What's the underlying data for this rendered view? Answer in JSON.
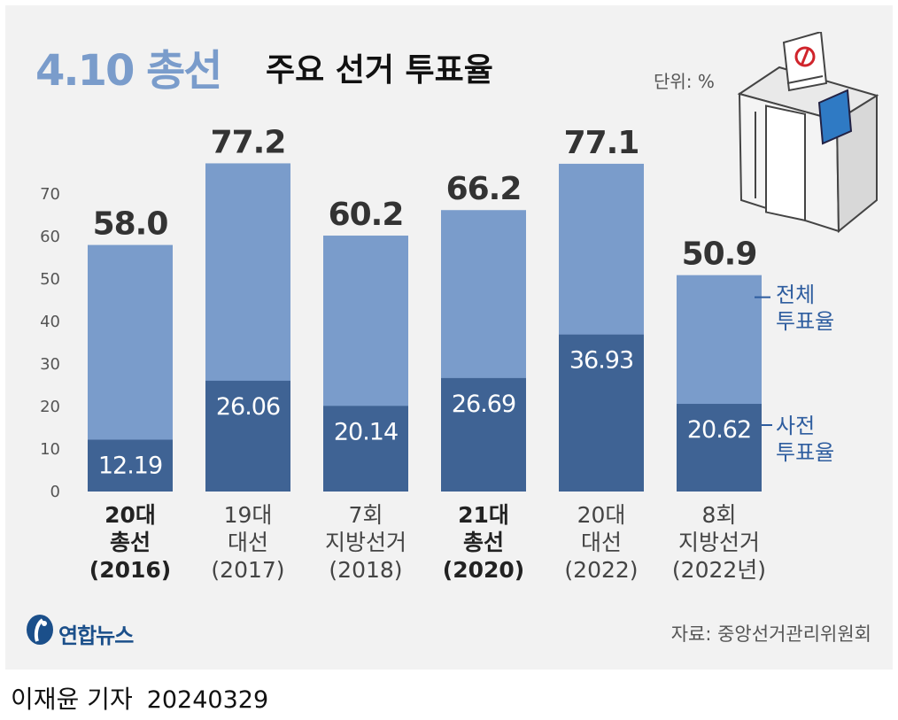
{
  "title": {
    "accent": "4.10 총선",
    "main": "주요 선거 투표율"
  },
  "unit": "단위: %",
  "colors": {
    "total": "#7a9ccb",
    "early": "#3f6394",
    "axis": "#555555",
    "series_text": "#2e5d9f"
  },
  "chart_data": {
    "type": "bar",
    "stacked_overlay": true,
    "categories": [
      [
        "20대",
        "총선",
        "(2016)"
      ],
      [
        "19대",
        "대선",
        "(2017)"
      ],
      [
        "7회",
        "지방선거",
        "(2018)"
      ],
      [
        "21대",
        "총선",
        "(2020)"
      ],
      [
        "20대",
        "대선",
        "(2022)"
      ],
      [
        "8회",
        "지방선거",
        "(2022년)"
      ]
    ],
    "bold_categories": [
      0,
      3
    ],
    "series": [
      {
        "name": "전체 투표율",
        "values": [
          58.0,
          77.2,
          60.2,
          66.2,
          77.1,
          50.9
        ],
        "labels": [
          "58.0",
          "77.2",
          "60.2",
          "66.2",
          "77.1",
          "50.9"
        ]
      },
      {
        "name": "사전 투표율",
        "values": [
          12.19,
          26.06,
          20.14,
          26.69,
          36.93,
          20.62
        ],
        "labels": [
          "12.19",
          "26.06",
          "20.14",
          "26.69",
          "36.93",
          "20.62"
        ]
      }
    ],
    "series_labels": {
      "total": [
        "전체",
        "투표율"
      ],
      "early": [
        "사전",
        "투표율"
      ]
    },
    "yticks": [
      "0",
      "10",
      "20",
      "30",
      "40",
      "50",
      "60",
      "70"
    ],
    "ylim": [
      0,
      80
    ]
  },
  "source": "자료: 중앙선거관리위원회",
  "logo": "연합뉴스",
  "byline": {
    "author": "이재윤 기자",
    "date": "20240329"
  }
}
